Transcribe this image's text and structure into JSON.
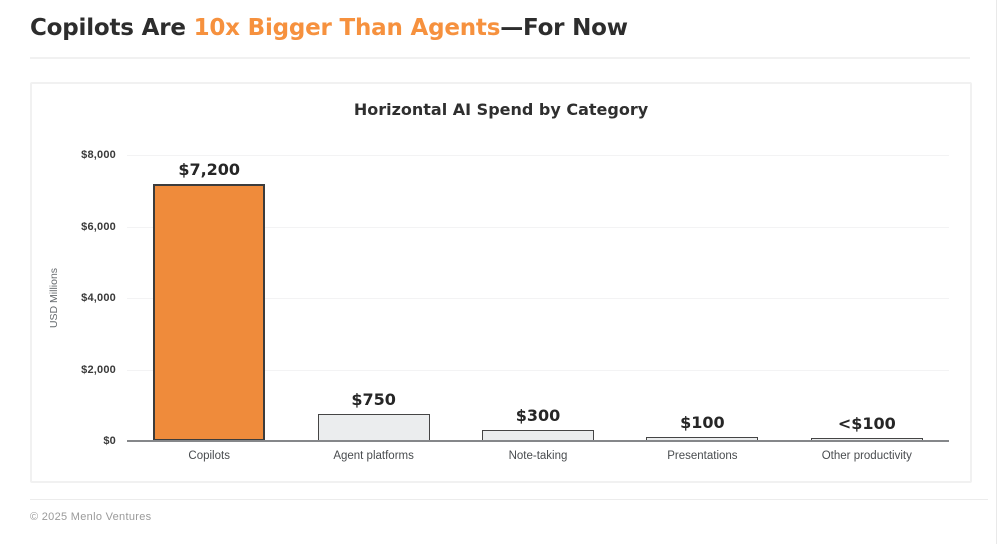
{
  "header": {
    "title_prefix": "Copilots Are ",
    "title_highlight": "10x Bigger Than Agents",
    "title_suffix": "—For Now",
    "highlight_color": "#f6913e"
  },
  "chart_data": {
    "type": "bar",
    "title": "Horizontal AI Spend by Category",
    "xlabel": "",
    "ylabel": "USD Millions",
    "ylim": [
      0,
      8000
    ],
    "grid": true,
    "legend": false,
    "yticks": [
      {
        "value": 8000,
        "label": "$8,000"
      },
      {
        "value": 6000,
        "label": "$6,000"
      },
      {
        "value": 4000,
        "label": "$4,000"
      },
      {
        "value": 2000,
        "label": "$2,000"
      },
      {
        "value": 0,
        "label": "$0"
      }
    ],
    "categories": [
      "Copilots",
      "Agent platforms",
      "Note-taking",
      "Presentations",
      "Other productivity"
    ],
    "values": [
      7200,
      750,
      300,
      100,
      50
    ],
    "bars": [
      {
        "category": "Copilots",
        "value": 7200,
        "label": "$7,200",
        "fill": "#ef8b3b"
      },
      {
        "category": "Agent platforms",
        "value": 750,
        "label": "$750",
        "fill": "#ebedee"
      },
      {
        "category": "Note-taking",
        "value": 300,
        "label": "$300",
        "fill": "#ebedee"
      },
      {
        "category": "Presentations",
        "value": 100,
        "label": "$100",
        "fill": "#ebedee"
      },
      {
        "category": "Other productivity",
        "value": 50,
        "label": "<$100",
        "fill": "#ebedee"
      }
    ],
    "colors": {
      "accent_orange": "#ef8b3b",
      "bar_gray": "#ebedee",
      "bar_border": "#454545",
      "axis_line": "#85878a",
      "gridline": "#f3f3f4"
    }
  },
  "footer": {
    "copyright": "© 2025 Menlo Ventures"
  }
}
